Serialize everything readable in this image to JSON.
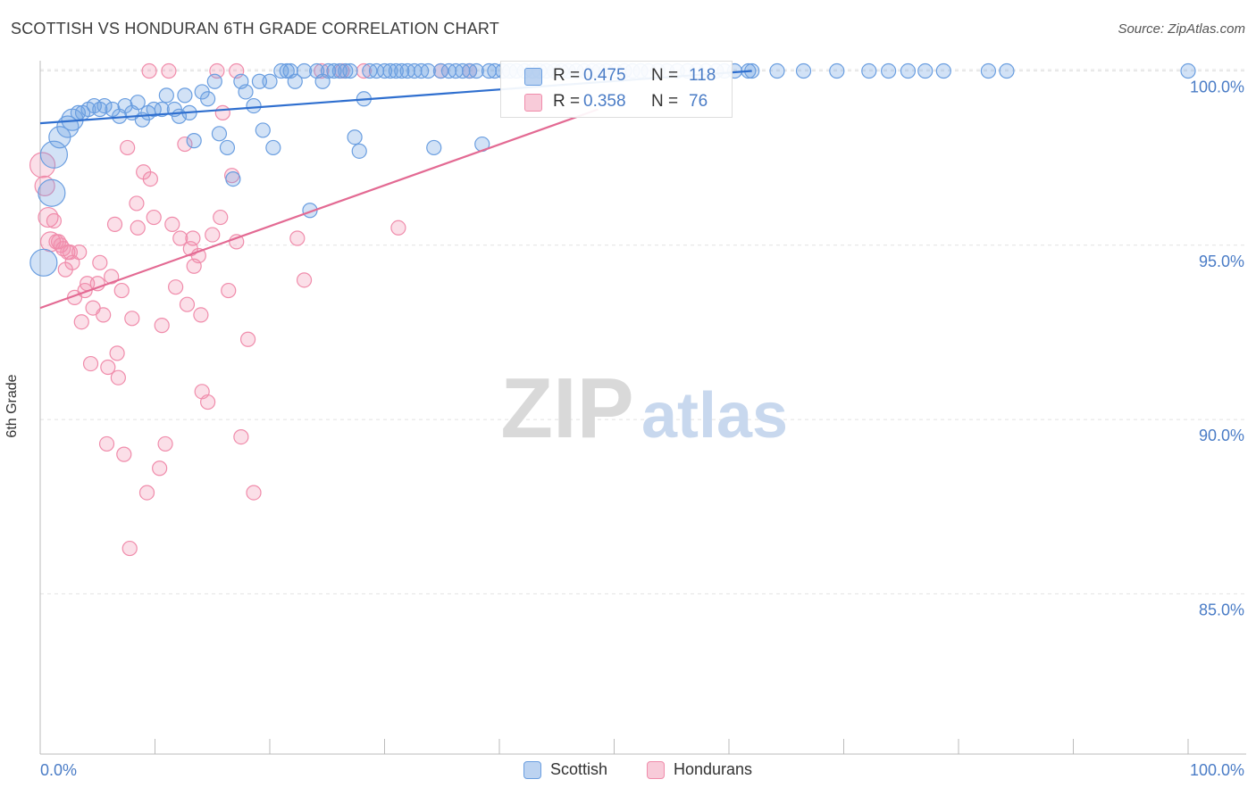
{
  "title": "SCOTTISH VS HONDURAN 6TH GRADE CORRELATION CHART",
  "source": "Source: ZipAtlas.com",
  "watermark": {
    "zip": "ZIP",
    "atlas": "atlas"
  },
  "colors": {
    "scottish": "#6a9ee0",
    "scottish_line": "#2f6fcf",
    "hondurans": "#f08cab",
    "hondurans_line": "#e36a93",
    "axis_blue": "#4a7cc6"
  },
  "stats": {
    "scottish": {
      "r_label": "R =",
      "r": "0.475",
      "n_label": "N =",
      "n": "118"
    },
    "hondurans": {
      "r_label": "R =",
      "r": "0.358",
      "n_label": "N =",
      "n": "76"
    }
  },
  "legend": {
    "scottish": "Scottish",
    "hondurans": "Hondurans"
  },
  "chart_data": {
    "type": "scatter",
    "title": "SCOTTISH VS HONDURAN 6TH GRADE CORRELATION CHART",
    "xlabel": "",
    "ylabel": "6th Grade",
    "xlim": [
      0,
      100
    ],
    "ylim": [
      80.4,
      100.5
    ],
    "x_tick_labels": [
      "0.0%",
      "100.0%"
    ],
    "y_ticks": [
      85,
      90,
      95,
      100
    ],
    "y_tick_labels": [
      "85.0%",
      "90.0%",
      "95.0%",
      "100.0%"
    ],
    "series": [
      {
        "name": "Scottish",
        "R": 0.475,
        "N": 118,
        "trendline": {
          "x": [
            0,
            62
          ],
          "y": [
            98.5,
            100.0
          ]
        },
        "points": [
          [
            0.3,
            94.5
          ],
          [
            1.0,
            96.5
          ],
          [
            1.2,
            97.6
          ],
          [
            1.7,
            98.1
          ],
          [
            2.4,
            98.4
          ],
          [
            2.8,
            98.6
          ],
          [
            3.3,
            98.8
          ],
          [
            3.7,
            98.8
          ],
          [
            4.2,
            98.9
          ],
          [
            4.7,
            99.0
          ],
          [
            5.2,
            98.9
          ],
          [
            5.6,
            99.0
          ],
          [
            6.3,
            98.9
          ],
          [
            6.9,
            98.7
          ],
          [
            7.4,
            99.0
          ],
          [
            8.0,
            98.8
          ],
          [
            8.5,
            99.1
          ],
          [
            8.9,
            98.6
          ],
          [
            9.4,
            98.8
          ],
          [
            9.9,
            98.9
          ],
          [
            10.6,
            98.9
          ],
          [
            11.0,
            99.3
          ],
          [
            11.7,
            98.9
          ],
          [
            12.1,
            98.7
          ],
          [
            12.6,
            99.3
          ],
          [
            13.0,
            98.8
          ],
          [
            13.4,
            98.0
          ],
          [
            14.1,
            99.4
          ],
          [
            14.6,
            99.2
          ],
          [
            15.2,
            99.7
          ],
          [
            15.6,
            98.2
          ],
          [
            16.3,
            97.8
          ],
          [
            16.8,
            96.9
          ],
          [
            17.5,
            99.7
          ],
          [
            17.9,
            99.4
          ],
          [
            18.6,
            99.0
          ],
          [
            19.1,
            99.7
          ],
          [
            19.4,
            98.3
          ],
          [
            20.0,
            99.7
          ],
          [
            20.3,
            97.8
          ],
          [
            21.0,
            100
          ],
          [
            21.5,
            100
          ],
          [
            21.8,
            100
          ],
          [
            22.2,
            99.7
          ],
          [
            23.0,
            100
          ],
          [
            23.5,
            96.0
          ],
          [
            24.1,
            100
          ],
          [
            24.6,
            99.7
          ],
          [
            25.1,
            100
          ],
          [
            25.6,
            100
          ],
          [
            26.1,
            100
          ],
          [
            26.6,
            100
          ],
          [
            27.0,
            100
          ],
          [
            27.4,
            98.1
          ],
          [
            27.8,
            97.7
          ],
          [
            28.2,
            99.2
          ],
          [
            28.7,
            100
          ],
          [
            29.3,
            100
          ],
          [
            30.0,
            100
          ],
          [
            30.5,
            100
          ],
          [
            31.0,
            100
          ],
          [
            31.5,
            100
          ],
          [
            32.0,
            100
          ],
          [
            32.6,
            100
          ],
          [
            33.2,
            100
          ],
          [
            33.8,
            100
          ],
          [
            34.3,
            97.8
          ],
          [
            34.9,
            100
          ],
          [
            35.6,
            100
          ],
          [
            36.2,
            100
          ],
          [
            36.8,
            100
          ],
          [
            37.4,
            100
          ],
          [
            38.0,
            100
          ],
          [
            38.5,
            97.9
          ],
          [
            39.1,
            100
          ],
          [
            39.6,
            100
          ],
          [
            40.3,
            100
          ],
          [
            40.9,
            100
          ],
          [
            41.5,
            100
          ],
          [
            42.2,
            100
          ],
          [
            42.9,
            100
          ],
          [
            43.5,
            100
          ],
          [
            44.1,
            100
          ],
          [
            44.8,
            100
          ],
          [
            45.4,
            100
          ],
          [
            46.0,
            100
          ],
          [
            46.7,
            100
          ],
          [
            47.4,
            100
          ],
          [
            48.1,
            100
          ],
          [
            48.7,
            100
          ],
          [
            49.3,
            100
          ],
          [
            50.1,
            100
          ],
          [
            50.9,
            100
          ],
          [
            51.6,
            100
          ],
          [
            52.3,
            100
          ],
          [
            53.0,
            100
          ],
          [
            53.8,
            100
          ],
          [
            54.6,
            100
          ],
          [
            55.5,
            100
          ],
          [
            56.4,
            100
          ],
          [
            57.2,
            100
          ],
          [
            58.0,
            100
          ],
          [
            58.9,
            100
          ],
          [
            59.6,
            100
          ],
          [
            60.5,
            100
          ],
          [
            61.7,
            100
          ],
          [
            62.0,
            100
          ],
          [
            64.2,
            100
          ],
          [
            66.5,
            100
          ],
          [
            69.4,
            100
          ],
          [
            72.2,
            100
          ],
          [
            73.9,
            100
          ],
          [
            75.6,
            100
          ],
          [
            77.1,
            100
          ],
          [
            78.7,
            100
          ],
          [
            82.6,
            100
          ],
          [
            84.2,
            100
          ],
          [
            100,
            100
          ]
        ]
      },
      {
        "name": "Hondurans",
        "R": 0.358,
        "N": 76,
        "trendline": {
          "x": [
            0,
            48.6
          ],
          "y": [
            93.2,
            98.9
          ]
        },
        "points": [
          [
            0.2,
            97.3
          ],
          [
            0.4,
            96.7
          ],
          [
            0.7,
            95.8
          ],
          [
            0.9,
            95.1
          ],
          [
            1.2,
            95.7
          ],
          [
            1.4,
            95.1
          ],
          [
            1.6,
            95.1
          ],
          [
            1.8,
            95.0
          ],
          [
            2.0,
            94.9
          ],
          [
            2.2,
            94.3
          ],
          [
            2.4,
            94.8
          ],
          [
            2.6,
            94.8
          ],
          [
            2.8,
            94.5
          ],
          [
            3.0,
            93.5
          ],
          [
            3.4,
            94.8
          ],
          [
            3.6,
            92.8
          ],
          [
            3.9,
            93.7
          ],
          [
            4.1,
            93.9
          ],
          [
            4.4,
            91.6
          ],
          [
            4.6,
            93.2
          ],
          [
            5.0,
            93.9
          ],
          [
            5.2,
            94.5
          ],
          [
            5.5,
            93.0
          ],
          [
            5.8,
            89.3
          ],
          [
            5.9,
            91.5
          ],
          [
            6.2,
            94.1
          ],
          [
            6.5,
            95.6
          ],
          [
            6.7,
            91.9
          ],
          [
            6.8,
            91.2
          ],
          [
            7.1,
            93.7
          ],
          [
            7.3,
            89.0
          ],
          [
            7.6,
            97.8
          ],
          [
            7.8,
            86.3
          ],
          [
            8.0,
            92.9
          ],
          [
            8.4,
            96.2
          ],
          [
            8.5,
            95.5
          ],
          [
            9.0,
            97.1
          ],
          [
            9.3,
            87.9
          ],
          [
            9.6,
            96.9
          ],
          [
            9.9,
            95.8
          ],
          [
            10.4,
            88.6
          ],
          [
            10.6,
            92.7
          ],
          [
            10.9,
            89.3
          ],
          [
            11.5,
            95.6
          ],
          [
            11.8,
            93.8
          ],
          [
            12.2,
            95.2
          ],
          [
            12.6,
            97.9
          ],
          [
            12.8,
            93.3
          ],
          [
            13.1,
            94.9
          ],
          [
            13.3,
            95.2
          ],
          [
            13.4,
            94.4
          ],
          [
            13.8,
            94.7
          ],
          [
            14.0,
            93.0
          ],
          [
            14.1,
            90.8
          ],
          [
            14.6,
            90.5
          ],
          [
            15.0,
            95.3
          ],
          [
            15.7,
            95.8
          ],
          [
            15.9,
            98.8
          ],
          [
            16.4,
            93.7
          ],
          [
            16.7,
            97.0
          ],
          [
            17.1,
            95.1
          ],
          [
            17.5,
            89.5
          ],
          [
            18.1,
            92.3
          ],
          [
            18.6,
            87.9
          ],
          [
            22.4,
            95.2
          ],
          [
            23.0,
            94.0
          ],
          [
            24.5,
            100
          ],
          [
            26.3,
            100
          ],
          [
            28.2,
            100
          ],
          [
            31.2,
            95.5
          ],
          [
            34.9,
            100
          ],
          [
            37.4,
            100
          ],
          [
            9.5,
            100
          ],
          [
            11.2,
            100
          ],
          [
            15.4,
            100
          ],
          [
            17.1,
            100
          ]
        ]
      }
    ]
  }
}
